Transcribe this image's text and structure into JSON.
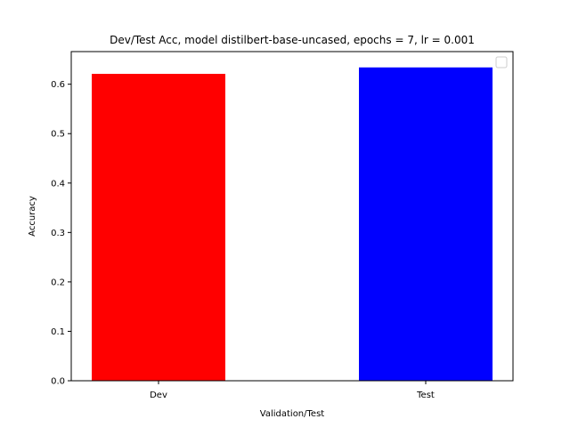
{
  "chart_data": {
    "type": "bar",
    "title": "Dev/Test Acc, model distilbert-base-uncased, epochs = 7, lr = 0.001",
    "xlabel": "Validation/Test",
    "ylabel": "Accuracy",
    "categories": [
      "Dev",
      "Test"
    ],
    "values": [
      0.621,
      0.634
    ],
    "colors": [
      "#ff0000",
      "#0000ff"
    ],
    "ylim": [
      0,
      0.666
    ],
    "yticks": [
      0.0,
      0.1,
      0.2,
      0.3,
      0.4,
      0.5,
      0.6
    ],
    "ytick_labels": [
      "0.0",
      "0.1",
      "0.2",
      "0.3",
      "0.4",
      "0.5",
      "0.6"
    ],
    "grid": false,
    "legend": {
      "placement": "top-right",
      "entries": []
    }
  }
}
